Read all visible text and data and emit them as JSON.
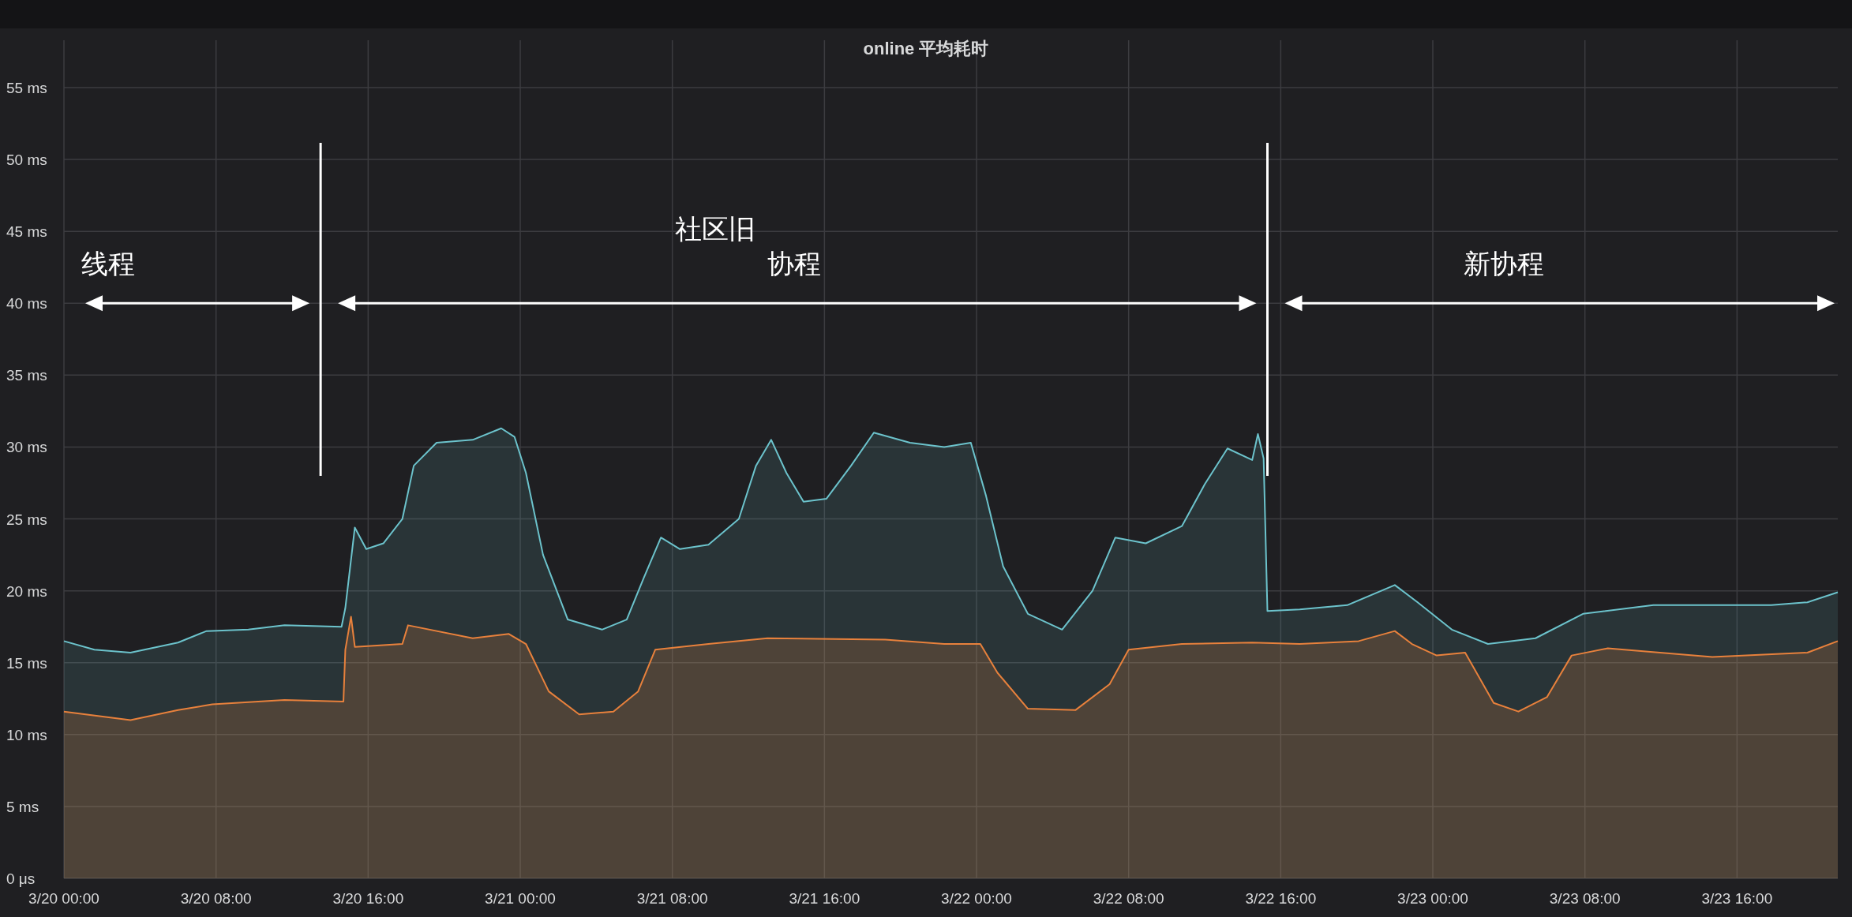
{
  "chart_data": {
    "type": "area",
    "title": "online 平均耗时",
    "xlim": [
      "--03-20T00:00",
      "--03-23T21:18"
    ],
    "xticks": [
      {
        "value": "--03-20T00:00",
        "label": "3/20 00:00"
      },
      {
        "value": "--03-20T08:00",
        "label": "3/20 08:00"
      },
      {
        "value": "--03-20T16:00",
        "label": "3/20 16:00"
      },
      {
        "value": "--03-21T00:00",
        "label": "3/21 00:00"
      },
      {
        "value": "--03-21T08:00",
        "label": "3/21 08:00"
      },
      {
        "value": "--03-21T16:00",
        "label": "3/21 16:00"
      },
      {
        "value": "--03-22T00:00",
        "label": "3/22 00:00"
      },
      {
        "value": "--03-22T08:00",
        "label": "3/22 08:00"
      },
      {
        "value": "--03-22T16:00",
        "label": "3/22 16:00"
      },
      {
        "value": "--03-23T00:00",
        "label": "3/23 00:00"
      },
      {
        "value": "--03-23T08:00",
        "label": "3/23 08:00"
      },
      {
        "value": "--03-23T16:00",
        "label": "3/23 16:00"
      }
    ],
    "ylim": [
      0,
      55
    ],
    "yticks": [
      {
        "value": 0,
        "label": "0 μs"
      },
      {
        "value": 5,
        "label": "5 ms"
      },
      {
        "value": 10,
        "label": "10 ms"
      },
      {
        "value": 15,
        "label": "15 ms"
      },
      {
        "value": 20,
        "label": "20 ms"
      },
      {
        "value": 25,
        "label": "25 ms"
      },
      {
        "value": 30,
        "label": "30 ms"
      },
      {
        "value": 35,
        "label": "35 ms"
      },
      {
        "value": 40,
        "label": "40 ms"
      },
      {
        "value": 45,
        "label": "45 ms"
      },
      {
        "value": 50,
        "label": "50 ms"
      },
      {
        "value": 55,
        "label": "55 ms"
      }
    ],
    "grid": true,
    "series": [
      {
        "color": "#6cc3cc",
        "x": [
          "--03-20T00:00",
          "--03-20T01:36",
          "--03-20T03:30",
          "--03-20T06:00",
          "--03-20T07:30",
          "--03-20T09:42",
          "--03-20T11:36",
          "--03-20T14:36",
          "--03-20T14:48",
          "--03-20T15:18",
          "--03-20T15:54",
          "--03-20T16:48",
          "--03-20T17:48",
          "--03-20T18:24",
          "--03-20T19:36",
          "--03-20T21:30",
          "--03-20T23:00",
          "--03-20T23:42",
          "--03-21T00:18",
          "--03-21T01:12",
          "--03-21T02:30",
          "--03-21T04:18",
          "--03-21T05:36",
          "--03-21T06:30",
          "--03-21T07:24",
          "--03-21T08:24",
          "--03-21T09:54",
          "--03-21T11:30",
          "--03-21T12:24",
          "--03-21T13:12",
          "--03-21T14:00",
          "--03-21T14:54",
          "--03-21T16:06",
          "--03-21T17:24",
          "--03-21T18:36",
          "--03-21T20:30",
          "--03-21T22:18",
          "--03-21T23:42",
          "--03-22T00:30",
          "--03-22T01:24",
          "--03-22T02:42",
          "--03-22T04:30",
          "--03-22T06:06",
          "--03-22T07:18",
          "--03-22T08:54",
          "--03-22T10:48",
          "--03-22T12:00",
          "--03-22T13:12",
          "--03-22T14:30",
          "--03-22T14:48",
          "--03-22T15:06",
          "--03-22T15:18",
          "--03-22T17:00",
          "--03-22T19:30",
          "--03-22T22:00",
          "--03-22T23:12",
          "--03-23T01:00",
          "--03-23T02:54",
          "--03-23T05:24",
          "--03-23T07:54",
          "--03-23T11:36",
          "--03-23T17:48",
          "--03-23T19:42",
          "--03-23T21:18"
        ],
        "values": [
          16.5,
          15.9,
          15.7,
          16.4,
          17.2,
          17.3,
          17.6,
          17.5,
          18.8,
          24.4,
          22.9,
          23.3,
          25,
          28.7,
          30.3,
          30.5,
          31.3,
          30.7,
          28.2,
          22.5,
          18,
          17.3,
          18,
          20.9,
          23.7,
          22.9,
          23.2,
          25,
          28.7,
          30.5,
          28.2,
          26.2,
          26.4,
          28.7,
          31,
          30.3,
          30,
          30.3,
          26.6,
          21.7,
          18.4,
          17.3,
          20,
          23.7,
          23.3,
          24.5,
          27.4,
          29.9,
          29.1,
          30.9,
          29.2,
          18.6,
          18.7,
          19,
          20.4,
          19.2,
          17.3,
          16.3,
          16.7,
          18.4,
          19,
          19,
          19.2,
          19.9
        ]
      },
      {
        "color": "#e8813c",
        "x": [
          "--03-20T00:00",
          "--03-20T03:30",
          "--03-20T06:00",
          "--03-20T07:48",
          "--03-20T11:36",
          "--03-20T14:42",
          "--03-20T14:48",
          "--03-20T15:06",
          "--03-20T15:18",
          "--03-20T17:48",
          "--03-20T18:06",
          "--03-20T21:30",
          "--03-20T23:24",
          "--03-21T00:18",
          "--03-21T01:30",
          "--03-21T03:06",
          "--03-21T04:54",
          "--03-21T06:12",
          "--03-21T07:06",
          "--03-21T09:54",
          "--03-21T13:00",
          "--03-21T19:12",
          "--03-21T22:18",
          "--03-22T00:12",
          "--03-22T01:06",
          "--03-22T02:42",
          "--03-22T05:12",
          "--03-22T07:00",
          "--03-22T08:00",
          "--03-22T10:48",
          "--03-22T14:30",
          "--03-22T17:00",
          "--03-22T20:06",
          "--03-22T22:00",
          "--03-22T22:54",
          "--03-23T00:12",
          "--03-23T01:42",
          "--03-23T03:12",
          "--03-23T04:30",
          "--03-23T06:00",
          "--03-23T07:18",
          "--03-23T09:12",
          "--03-23T14:42",
          "--03-23T19:42",
          "--03-23T21:18"
        ],
        "values": [
          11.6,
          11,
          11.7,
          12.1,
          12.4,
          12.3,
          15.9,
          18.2,
          16.1,
          16.3,
          17.6,
          16.7,
          17,
          16.3,
          13,
          11.4,
          11.6,
          13,
          15.9,
          16.3,
          16.7,
          16.6,
          16.3,
          16.3,
          14.3,
          11.8,
          11.7,
          13.5,
          15.9,
          16.3,
          16.4,
          16.3,
          16.5,
          17.2,
          16.3,
          15.5,
          15.7,
          12.2,
          11.6,
          12.6,
          15.5,
          16,
          15.4,
          15.7,
          16.5
        ]
      }
    ],
    "ref_lines": [
      {
        "axis": "x",
        "value": "--03-20T13:30",
        "color": "#ffffff"
      },
      {
        "axis": "x",
        "value": "--03-22T15:18",
        "color": "#ffffff"
      }
    ],
    "annotations": [
      "线程",
      "社区旧",
      "协程",
      "新协程"
    ]
  }
}
